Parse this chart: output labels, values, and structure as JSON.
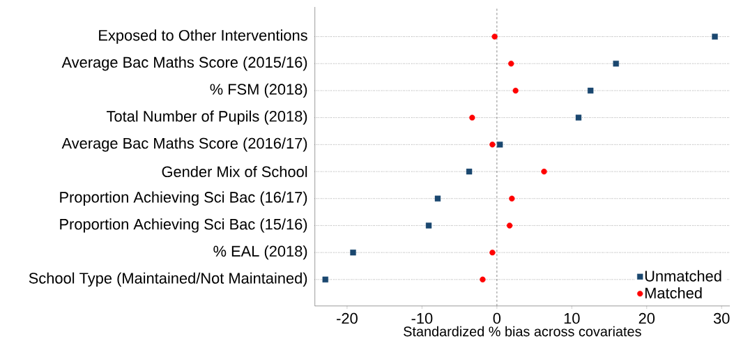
{
  "chart_data": {
    "type": "scatter",
    "orientation": "horizontal",
    "xlabel": "Standardized % bias across covariates",
    "categories": [
      "Exposed to Other Interventions",
      "Average Bac Maths Score (2015/16)",
      "% FSM (2018)",
      "Total Number of Pupils (2018)",
      "Average Bac Maths Score (2016/17)",
      "Gender Mix of School",
      "Proportion Achieving Sci Bac (16/17)",
      "Proportion Achieving Sci Bac (15/16)",
      "% EAL (2018)",
      "School Type (Maintained/Not Maintained)"
    ],
    "series": [
      {
        "name": "Unmatched",
        "color": "#1a476f",
        "marker": "square",
        "values": [
          29.1,
          15.9,
          12.5,
          10.9,
          0.4,
          -3.7,
          -7.9,
          -9.1,
          -19.2,
          -22.9
        ]
      },
      {
        "name": "Matched",
        "color": "#ff0000",
        "marker": "circle",
        "values": [
          -0.3,
          1.9,
          2.5,
          -3.3,
          -0.6,
          6.3,
          2.0,
          1.7,
          -0.6,
          -1.9
        ]
      }
    ],
    "xlim": [
      -24.3,
      31.1
    ],
    "xticks": [
      -20,
      -10,
      0,
      10,
      20,
      30
    ],
    "ref_lines": [
      {
        "axis": "x",
        "value": 0,
        "color": "#999999",
        "line_style": "dashed"
      }
    ],
    "grid": "y",
    "legend": "bottom right"
  }
}
